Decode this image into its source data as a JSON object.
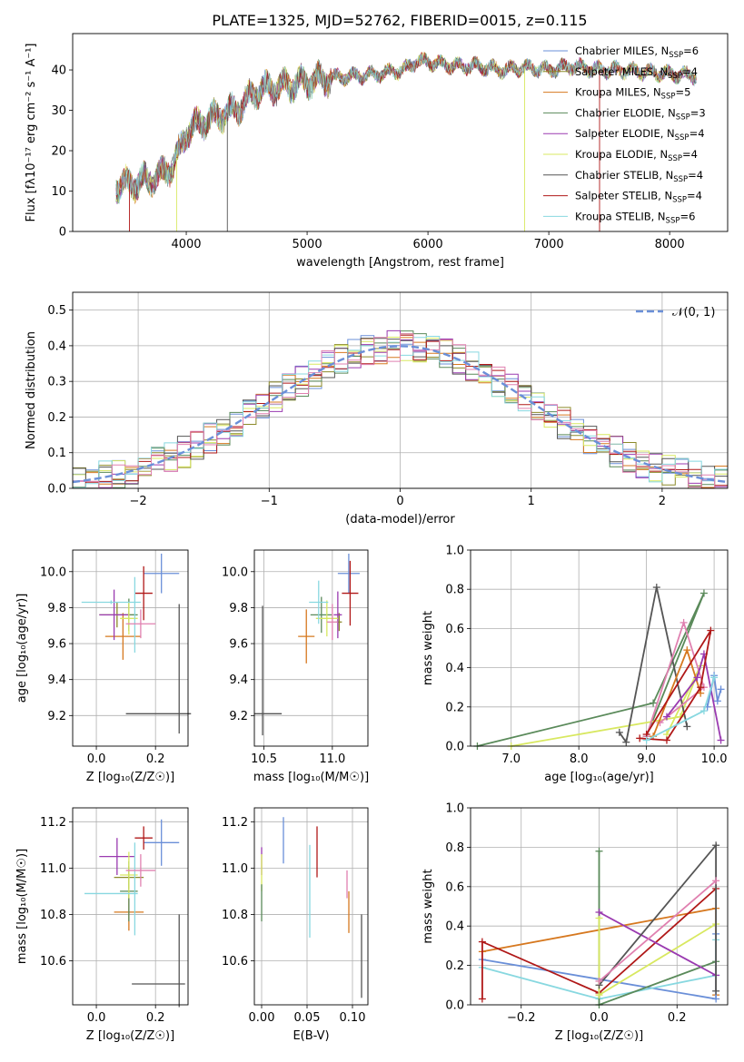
{
  "figure_title": "PLATE=1325, MJD=52762, FIBERID=0015, z=0.115",
  "colors": [
    "#6a8fd8",
    "#8c8a2a",
    "#d6781f",
    "#5a8a5a",
    "#9a3ab0",
    "#d8e860",
    "#555555",
    "#b01818",
    "#88d8e0",
    "#e080b0"
  ],
  "chart_data": [
    {
      "id": "spectrum",
      "type": "line",
      "title": "PLATE=1325, MJD=52762, FIBERID=0015, z=0.115",
      "xlabel": "wavelength [Angstrom, rest frame]",
      "ylabel": "Flux [fλ10⁻¹⁷ erg cm⁻² s⁻¹ A⁻¹]",
      "xlim": [
        3060,
        8480
      ],
      "ylim": [
        0,
        49
      ],
      "xticks": [
        4000,
        5000,
        6000,
        7000,
        8000
      ],
      "yticks": [
        0,
        10,
        20,
        30,
        40
      ],
      "grid": false,
      "legend_position": "top-right",
      "continuum": {
        "x": [
          3420,
          3600,
          3800,
          3900,
          3950,
          4000,
          4200,
          4400,
          4600,
          4800,
          5000,
          5200,
          5400,
          5600,
          5800,
          5900,
          6000,
          6200,
          6400,
          6600,
          6800,
          7000,
          7200,
          7400,
          7600,
          7800,
          8000,
          8220
        ],
        "y": [
          11.5,
          12,
          14,
          17,
          20,
          25,
          28,
          30,
          35,
          36,
          37,
          38,
          38.5,
          39,
          40,
          42,
          42,
          41,
          41,
          40,
          40.5,
          40,
          41,
          40,
          40,
          39.5,
          39,
          38.5
        ]
      },
      "drops": [
        {
          "x": 3530,
          "series": 7
        },
        {
          "x": 3920,
          "series": 5
        },
        {
          "x": 4340,
          "series": 6
        },
        {
          "x": 6800,
          "series": 5
        },
        {
          "x": 7420,
          "series": 7
        }
      ],
      "series": [
        {
          "name": "Chabrier MILES, N",
          "sub": "SSP",
          "val": "=6",
          "color": "#6a8fd8"
        },
        {
          "name": "Salpeter MILES, N",
          "sub": "SSP",
          "val": "=4",
          "color": "#8c8a2a"
        },
        {
          "name": "Kroupa MILES, N",
          "sub": "SSP",
          "val": "=5",
          "color": "#d6781f"
        },
        {
          "name": "Chabrier ELODIE, N",
          "sub": "SSP",
          "val": "=3",
          "color": "#5a8a5a"
        },
        {
          "name": "Salpeter ELODIE, N",
          "sub": "SSP",
          "val": "=4",
          "color": "#9a3ab0"
        },
        {
          "name": "Kroupa ELODIE, N",
          "sub": "SSP",
          "val": "=4",
          "color": "#d8e860"
        },
        {
          "name": "Chabrier STELIB, N",
          "sub": "SSP",
          "val": "=4",
          "color": "#555555"
        },
        {
          "name": "Salpeter STELIB, N",
          "sub": "SSP",
          "val": "=4",
          "color": "#b01818"
        },
        {
          "name": "Kroupa STELIB, N",
          "sub": "SSP",
          "val": "=6",
          "color": "#88d8e0"
        }
      ]
    },
    {
      "id": "residuals",
      "type": "histogram",
      "xlabel": "(data-model)/error",
      "ylabel": "Normed distribution",
      "xlim": [
        -2.5,
        2.5
      ],
      "ylim": [
        0,
        0.55
      ],
      "xticks": [
        -2,
        -1,
        0,
        1,
        2
      ],
      "xtick_labels": [
        "−2",
        "−1",
        "0",
        "1",
        "2"
      ],
      "yticks": [
        0.0,
        0.1,
        0.2,
        0.3,
        0.4,
        0.5
      ],
      "grid": true,
      "legend_position": "top-right",
      "bin_width": 0.1,
      "gaussian": {
        "label": "𝒩(0, 1)",
        "color": "#6a8fd8",
        "mean": 0,
        "sigma": 1
      }
    },
    {
      "id": "age-vs-Z",
      "type": "errorbar",
      "xlabel": "Z [log₁₀(Z/Z☉)]",
      "ylabel": "age  [log₁₀(age/yr)]",
      "xlim": [
        -0.08,
        0.31
      ],
      "ylim": [
        9.03,
        10.12
      ],
      "xticks": [
        0.0,
        0.2
      ],
      "yticks": [
        9.2,
        9.4,
        9.6,
        9.8,
        10.0
      ],
      "grid": true,
      "points": [
        {
          "x": 0.22,
          "y": 9.99,
          "xerr": 0.06,
          "yerr": 0.11,
          "c": 0
        },
        {
          "x": 0.07,
          "y": 9.76,
          "xerr": 0.06,
          "yerr": 0.07,
          "c": 1
        },
        {
          "x": 0.09,
          "y": 9.64,
          "xerr": 0.06,
          "yerr": 0.13,
          "c": 2
        },
        {
          "x": 0.11,
          "y": 9.76,
          "xerr": 0.03,
          "yerr": 0.09,
          "c": 3
        },
        {
          "x": 0.06,
          "y": 9.76,
          "xerr": 0.05,
          "yerr": 0.14,
          "c": 4
        },
        {
          "x": 0.11,
          "y": 9.74,
          "xerr": 0.03,
          "yerr": 0.09,
          "c": 5
        },
        {
          "x": 0.21,
          "y": 9.21,
          "xerr": 0.11,
          "yerr": 0.0,
          "c": 6
        },
        {
          "x": 0.28,
          "y": 9.46,
          "xerr": 0.0,
          "yerr": 0.36,
          "c": 6
        },
        {
          "x": 0.16,
          "y": 9.88,
          "xerr": 0.03,
          "yerr": 0.15,
          "c": 7
        },
        {
          "x": 0.05,
          "y": 9.83,
          "xerr": 0.1,
          "yerr": 0.01,
          "c": 8
        },
        {
          "x": 0.13,
          "y": 9.76,
          "xerr": 0.0,
          "yerr": 0.21,
          "c": 8
        },
        {
          "x": 0.15,
          "y": 9.71,
          "xerr": 0.05,
          "yerr": 0.08,
          "c": 9
        }
      ]
    },
    {
      "id": "age-vs-mass",
      "type": "errorbar",
      "xlabel": "mass [log₁₀(M/M☉)]",
      "ylabel": "",
      "xlim": [
        10.43,
        11.26
      ],
      "ylim": [
        9.03,
        10.12
      ],
      "xticks": [
        10.5,
        11.0
      ],
      "xtick_labels": [
        "10.5",
        "11.0"
      ],
      "yticks": [
        9.2,
        9.4,
        9.6,
        9.8,
        10.0
      ],
      "grid": true,
      "points": [
        {
          "x": 11.12,
          "y": 9.99,
          "xerr": 0.08,
          "yerr": 0.11,
          "c": 0
        },
        {
          "x": 11.05,
          "y": 9.72,
          "xerr": 0.02,
          "yerr": 0.05,
          "c": 1
        },
        {
          "x": 10.81,
          "y": 9.64,
          "xerr": 0.06,
          "yerr": 0.15,
          "c": 2
        },
        {
          "x": 10.92,
          "y": 9.76,
          "xerr": 0.08,
          "yerr": 0.1,
          "c": 3
        },
        {
          "x": 11.04,
          "y": 9.76,
          "xerr": 0.03,
          "yerr": 0.13,
          "c": 4
        },
        {
          "x": 10.96,
          "y": 9.74,
          "xerr": 0.08,
          "yerr": 0.1,
          "c": 5
        },
        {
          "x": 10.53,
          "y": 9.21,
          "xerr": 0.1,
          "yerr": 0.0,
          "c": 6
        },
        {
          "x": 10.49,
          "y": 9.45,
          "xerr": 0.0,
          "yerr": 0.36,
          "c": 6
        },
        {
          "x": 11.13,
          "y": 9.88,
          "xerr": 0.06,
          "yerr": 0.18,
          "c": 7
        },
        {
          "x": 10.9,
          "y": 9.83,
          "xerr": 0.07,
          "yerr": 0.12,
          "c": 8
        },
        {
          "x": 11.0,
          "y": 9.72,
          "xerr": 0.04,
          "yerr": 0.1,
          "c": 9
        }
      ]
    },
    {
      "id": "weight-vs-age",
      "type": "line",
      "xlabel": "age  [log₁₀(age/yr)]",
      "ylabel": "mass weight",
      "xlim": [
        6.4,
        10.2
      ],
      "ylim": [
        0,
        1.0
      ],
      "xticks": [
        7,
        8,
        9,
        10
      ],
      "yticks": [
        0.0,
        0.2,
        0.4,
        0.6,
        0.8,
        1.0
      ],
      "grid": true,
      "series": [
        {
          "c": 3,
          "points": [
            [
              6.5,
              0.0
            ],
            [
              9.1,
              0.22
            ],
            [
              9.85,
              0.78
            ],
            [
              9.0,
              0.05
            ]
          ]
        },
        {
          "c": 5,
          "points": [
            [
              7.0,
              0.0
            ],
            [
              9.5,
              0.15
            ],
            [
              9.8,
              0.41
            ],
            [
              9.3,
              0.06
            ]
          ]
        },
        {
          "c": 6,
          "points": [
            [
              8.6,
              0.07
            ],
            [
              8.7,
              0.02
            ],
            [
              9.15,
              0.81
            ],
            [
              9.6,
              0.1
            ]
          ]
        },
        {
          "c": 9,
          "points": [
            [
              9.0,
              0.05
            ],
            [
              9.55,
              0.63
            ],
            [
              9.85,
              0.3
            ],
            [
              9.2,
              0.12
            ]
          ]
        },
        {
          "c": 2,
          "points": [
            [
              9.1,
              0.05
            ],
            [
              9.6,
              0.49
            ],
            [
              9.8,
              0.27
            ]
          ]
        },
        {
          "c": 4,
          "points": [
            [
              9.3,
              0.15
            ],
            [
              9.75,
              0.35
            ],
            [
              9.85,
              0.47
            ],
            [
              10.1,
              0.03
            ]
          ]
        },
        {
          "c": 7,
          "points": [
            [
              8.9,
              0.04
            ],
            [
              9.3,
              0.03
            ],
            [
              9.8,
              0.3
            ],
            [
              9.95,
              0.59
            ],
            [
              9.0,
              0.06
            ]
          ]
        },
        {
          "c": 0,
          "points": [
            [
              9.9,
              0.2
            ],
            [
              10.0,
              0.36
            ],
            [
              10.05,
              0.23
            ],
            [
              10.1,
              0.29
            ]
          ]
        },
        {
          "c": 8,
          "points": [
            [
              9.0,
              0.03
            ],
            [
              9.85,
              0.18
            ],
            [
              10.0,
              0.35
            ]
          ]
        }
      ]
    },
    {
      "id": "mass-vs-Z",
      "type": "errorbar",
      "xlabel": "Z [log₁₀(Z/Z☉)]",
      "ylabel": "mass [log₁₀(M/M☉)]",
      "xlim": [
        -0.08,
        0.31
      ],
      "ylim": [
        10.41,
        11.26
      ],
      "xticks": [
        0.0,
        0.2
      ],
      "yticks": [
        10.6,
        10.8,
        11.0,
        11.2
      ],
      "grid": true,
      "points": [
        {
          "x": 0.22,
          "y": 11.11,
          "xerr": 0.06,
          "yerr": 0.1,
          "c": 0
        },
        {
          "x": 0.11,
          "y": 10.96,
          "xerr": 0.05,
          "yerr": 0.05,
          "c": 1
        },
        {
          "x": 0.11,
          "y": 10.81,
          "xerr": 0.05,
          "yerr": 0.08,
          "c": 2
        },
        {
          "x": 0.11,
          "y": 10.9,
          "xerr": 0.03,
          "yerr": 0.13,
          "c": 3
        },
        {
          "x": 0.07,
          "y": 11.05,
          "xerr": 0.06,
          "yerr": 0.08,
          "c": 4
        },
        {
          "x": 0.11,
          "y": 10.97,
          "xerr": 0.03,
          "yerr": 0.1,
          "c": 5
        },
        {
          "x": 0.21,
          "y": 10.5,
          "xerr": 0.09,
          "yerr": 0.0,
          "c": 6
        },
        {
          "x": 0.28,
          "y": 10.6,
          "xerr": 0.0,
          "yerr": 0.2,
          "c": 6
        },
        {
          "x": 0.16,
          "y": 11.13,
          "xerr": 0.03,
          "yerr": 0.05,
          "c": 7
        },
        {
          "x": 0.05,
          "y": 10.89,
          "xerr": 0.09,
          "yerr": 0.0,
          "c": 8
        },
        {
          "x": 0.13,
          "y": 10.91,
          "xerr": 0.0,
          "yerr": 0.2,
          "c": 8
        },
        {
          "x": 0.15,
          "y": 10.99,
          "xerr": 0.05,
          "yerr": 0.07,
          "c": 9
        }
      ]
    },
    {
      "id": "mass-vs-ebv",
      "type": "errorbar",
      "xlabel": "E(B-V)",
      "ylabel": "",
      "xlim": [
        -0.008,
        0.117
      ],
      "ylim": [
        10.41,
        11.26
      ],
      "xticks": [
        0.0,
        0.05,
        0.1
      ],
      "xtick_labels": [
        "0.00",
        "0.05",
        "0.10"
      ],
      "yticks": [
        10.6,
        10.8,
        11.0,
        11.2
      ],
      "grid": true,
      "points": [
        {
          "x": 0.0,
          "y": 11.03,
          "xerr": 0.0,
          "yerr": 0.06,
          "c": 4
        },
        {
          "x": 0.0,
          "y": 10.98,
          "xerr": 0.0,
          "yerr": 0.08,
          "c": 5
        },
        {
          "x": 0.0,
          "y": 10.85,
          "xerr": 0.0,
          "yerr": 0.08,
          "c": 3
        },
        {
          "x": 0.024,
          "y": 11.12,
          "xerr": 0.0,
          "yerr": 0.1,
          "c": 0
        },
        {
          "x": 0.053,
          "y": 10.9,
          "xerr": 0.0,
          "yerr": 0.2,
          "c": 8
        },
        {
          "x": 0.061,
          "y": 11.07,
          "xerr": 0.0,
          "yerr": 0.11,
          "c": 7
        },
        {
          "x": 0.094,
          "y": 10.93,
          "xerr": 0.0,
          "yerr": 0.06,
          "c": 9
        },
        {
          "x": 0.096,
          "y": 10.81,
          "xerr": 0.0,
          "yerr": 0.09,
          "c": 2
        },
        {
          "x": 0.11,
          "y": 10.62,
          "xerr": 0.0,
          "yerr": 0.18,
          "c": 6
        }
      ]
    },
    {
      "id": "weight-vs-Z",
      "type": "line",
      "xlabel": "Z [log₁₀(Z/Z☉)]",
      "ylabel": "mass weight",
      "xlim": [
        -0.33,
        0.33
      ],
      "ylim": [
        0,
        1.0
      ],
      "xticks": [
        -0.2,
        0.0,
        0.2
      ],
      "xtick_labels": [
        "−0.2",
        "0.0",
        "0.2"
      ],
      "yticks": [
        0.0,
        0.2,
        0.4,
        0.6,
        0.8,
        1.0
      ],
      "grid": true,
      "series": [
        {
          "c": 2,
          "points": [
            [
              -0.3,
              0.27
            ],
            [
              0.3,
              0.49
            ],
            [
              0.3,
              0.05
            ]
          ]
        },
        {
          "c": 0,
          "points": [
            [
              -0.3,
              0.23
            ],
            [
              0.0,
              0.13
            ],
            [
              0.3,
              0.03
            ],
            [
              0.3,
              0.36
            ]
          ]
        },
        {
          "c": 8,
          "points": [
            [
              -0.3,
              0.19
            ],
            [
              0.0,
              0.03
            ],
            [
              0.3,
              0.15
            ],
            [
              0.3,
              0.33
            ]
          ]
        },
        {
          "c": 7,
          "points": [
            [
              -0.3,
              0.03
            ],
            [
              -0.3,
              0.32
            ],
            [
              0.0,
              0.06
            ],
            [
              0.3,
              0.59
            ]
          ]
        },
        {
          "c": 3,
          "points": [
            [
              0.0,
              0.78
            ],
            [
              0.0,
              0.0
            ],
            [
              0.3,
              0.22
            ]
          ]
        },
        {
          "c": 5,
          "points": [
            [
              0.0,
              0.44
            ],
            [
              0.0,
              0.05
            ],
            [
              0.3,
              0.41
            ]
          ]
        },
        {
          "c": 4,
          "points": [
            [
              0.0,
              0.47
            ],
            [
              0.3,
              0.15
            ]
          ]
        },
        {
          "c": 6,
          "points": [
            [
              0.0,
              0.1
            ],
            [
              0.3,
              0.81
            ],
            [
              0.3,
              0.07
            ]
          ]
        },
        {
          "c": 9,
          "points": [
            [
              0.0,
              0.12
            ],
            [
              0.3,
              0.63
            ]
          ]
        }
      ]
    }
  ]
}
